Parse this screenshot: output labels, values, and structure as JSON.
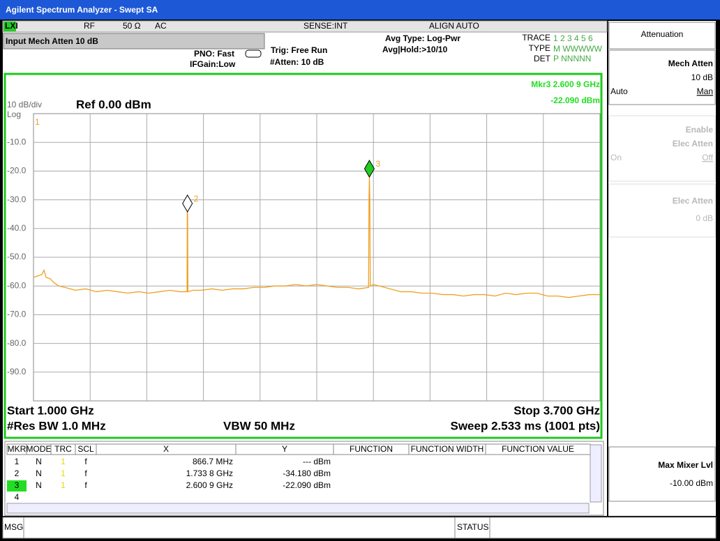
{
  "title_bar": "Agilent Spectrum Analyzer - Swept SA",
  "status_row": {
    "logo": "LXI",
    "items": [
      "RF",
      "50 Ω",
      "AC",
      "SENSE:INT",
      "ALIGN AUTO"
    ]
  },
  "info": {
    "banner": "Input Mech Atten 10 dB",
    "pno": "PNO: Fast",
    "ifgain": "IFGain:Low",
    "trig": "Trig: Free Run",
    "atten": "#Atten: 10 dB",
    "avg_type": "Avg Type: Log-Pwr",
    "avg_hold": "Avg|Hold:>10/10",
    "trace_panel": {
      "trace_label": "TRACE",
      "trace_values": "1 2 3 4 5 6",
      "type_label": "TYPE",
      "type_values": "M WWWWW",
      "det_label": "DET",
      "det_values": "P NNNNN"
    }
  },
  "chart_data": {
    "type": "line",
    "scale": "10 dB/div",
    "scale_type": "Log",
    "ref_level": "Ref 0.00 dBm",
    "marker_readout": {
      "label": "Mkr3 2.600 9 GHz",
      "value": "-22.090 dBm"
    },
    "start": "Start 1.000 GHz",
    "stop": "Stop 3.700 GHz",
    "rbw": "#Res BW 1.0 MHz",
    "vbw": "VBW 50 MHz",
    "sweep": "Sweep  2.533 ms (1001 pts)",
    "xlim": [
      1.0,
      3.7
    ],
    "ylim": [
      -100,
      0
    ],
    "yticks": [
      {
        "value": -10,
        "label": "-10.0"
      },
      {
        "value": -20,
        "label": "-20.0"
      },
      {
        "value": -30,
        "label": "-30.0"
      },
      {
        "value": -40,
        "label": "-40.0"
      },
      {
        "value": -50,
        "label": "-50.0"
      },
      {
        "value": -60,
        "label": "-60.0"
      },
      {
        "value": -70,
        "label": "-70.0"
      },
      {
        "value": -80,
        "label": "-80.0"
      },
      {
        "value": -90,
        "label": "-90.0"
      }
    ],
    "grid": true,
    "x": [
      1.0,
      1.02,
      1.04,
      1.05,
      1.06,
      1.08,
      1.1,
      1.12,
      1.15,
      1.2,
      1.25,
      1.3,
      1.35,
      1.4,
      1.45,
      1.5,
      1.55,
      1.6,
      1.65,
      1.7,
      1.732,
      1.733,
      1.7338,
      1.7346,
      1.736,
      1.76,
      1.8,
      1.85,
      1.9,
      1.95,
      2.0,
      2.05,
      2.1,
      2.15,
      2.2,
      2.25,
      2.3,
      2.35,
      2.4,
      2.45,
      2.5,
      2.55,
      2.597,
      2.599,
      2.6009,
      2.603,
      2.605,
      2.62,
      2.65,
      2.7,
      2.75,
      2.8,
      2.85,
      2.9,
      2.95,
      3.0,
      3.05,
      3.1,
      3.15,
      3.2,
      3.25,
      3.3,
      3.35,
      3.4,
      3.45,
      3.5,
      3.55,
      3.6,
      3.65,
      3.7
    ],
    "series": [
      {
        "color": "#f0a020",
        "values": [
          -57,
          -56.5,
          -56,
          -54.5,
          -57,
          -57.5,
          -59,
          -60,
          -60.5,
          -61.5,
          -61,
          -62,
          -61.5,
          -62,
          -62.5,
          -62,
          -62.5,
          -62,
          -61.5,
          -62,
          -62,
          -33.5,
          -34.18,
          -35,
          -62,
          -61.5,
          -61.5,
          -61,
          -61.5,
          -61,
          -61,
          -60.5,
          -60.5,
          -60,
          -60,
          -59.5,
          -60,
          -59.5,
          -60,
          -60.5,
          -60.5,
          -61,
          -60.5,
          -30,
          -22.09,
          -30,
          -60,
          -59.5,
          -60,
          -61,
          -62,
          -62,
          -62.5,
          -62.5,
          -63,
          -63,
          -63.5,
          -63,
          -63,
          -63.5,
          -62.5,
          -63,
          -62.5,
          -62.5,
          -63.5,
          -63.5,
          -64,
          -63.5,
          -63,
          -63
        ]
      }
    ],
    "markers": [
      {
        "label": "1"
      },
      {
        "label": "2",
        "x": 1.7338,
        "y": -34.18
      },
      {
        "label": "3",
        "x": 2.6009,
        "y": -22.09
      }
    ]
  },
  "table": {
    "headers": [
      "MKR",
      "MODE",
      "TRC",
      "SCL",
      "X",
      "Y",
      "FUNCTION",
      "FUNCTION WIDTH",
      "FUNCTION VALUE"
    ],
    "rows": [
      {
        "mkr": "1",
        "mode": "N",
        "trc": "1",
        "scl": "f",
        "x": "866.7 MHz",
        "y": "--- dBm"
      },
      {
        "mkr": "2",
        "mode": "N",
        "trc": "1",
        "scl": "f",
        "x": "1.733 8 GHz",
        "y": "-34.180 dBm"
      },
      {
        "mkr": "3",
        "mode": "N",
        "trc": "1",
        "scl": "f",
        "x": "2.600 9 GHz",
        "y": "-22.090 dBm"
      },
      {
        "mkr": "4"
      }
    ]
  },
  "softkeys": {
    "menu_title": "Attenuation",
    "mech_atten": {
      "label": "Mech Atten",
      "value": "10 dB",
      "auto": "Auto",
      "man": "Man"
    },
    "enable_elec": {
      "line1": "Enable",
      "line2": "Elec Atten",
      "on": "On",
      "off": "Off"
    },
    "elec_atten": {
      "label": "Elec Atten",
      "value": "0 dB"
    },
    "max_mixer": {
      "label": "Max Mixer Lvl",
      "value": "-10.00 dBm"
    }
  },
  "bottom_bar": {
    "msg": "MSG",
    "status": "STATUS"
  }
}
